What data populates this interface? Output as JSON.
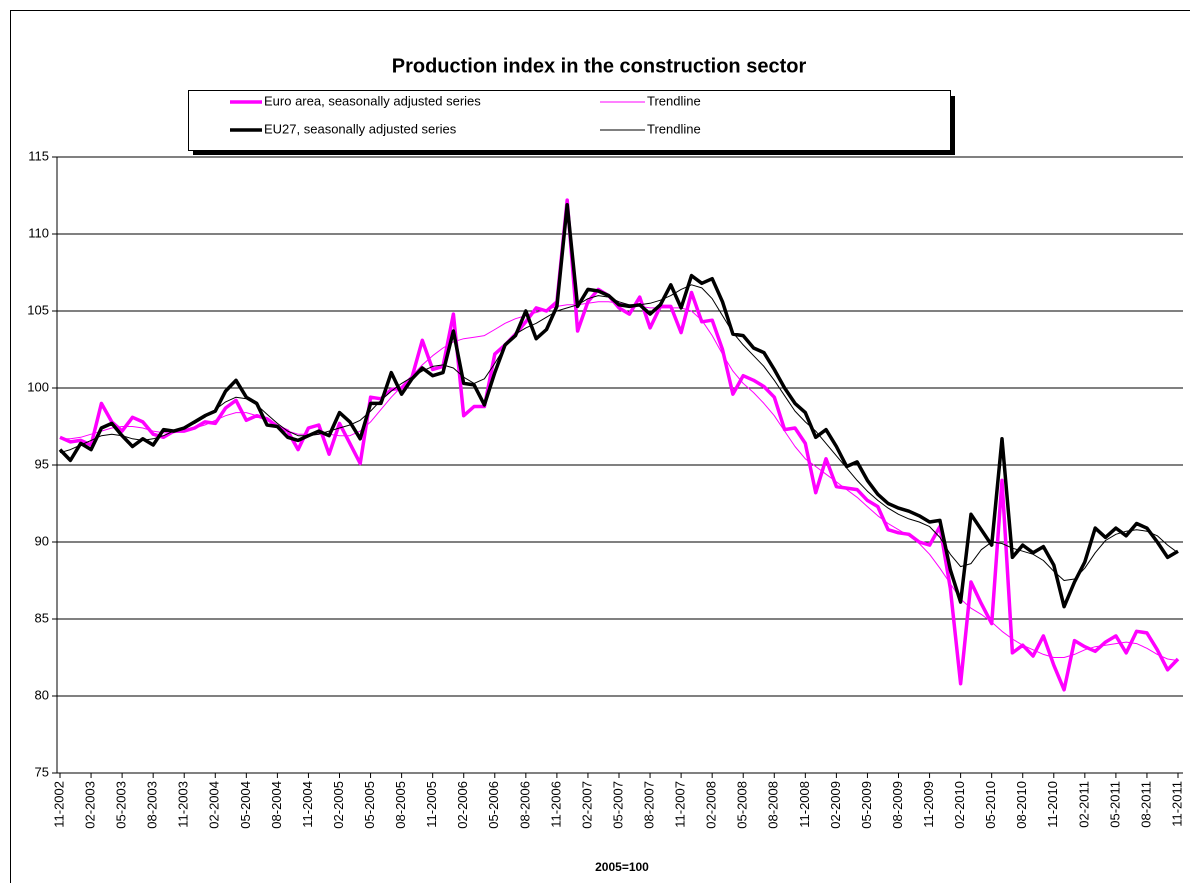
{
  "chart_data": {
    "type": "line",
    "title": "Production index in the construction sector",
    "x_label": "2005=100",
    "categories": [
      "11-2002",
      null,
      null,
      "02-2003",
      null,
      null,
      "05-2003",
      null,
      null,
      "08-2003",
      null,
      null,
      "11-2003",
      null,
      null,
      "02-2004",
      null,
      null,
      "05-2004",
      null,
      null,
      "08-2004",
      null,
      null,
      "11-2004",
      null,
      null,
      "02-2005",
      null,
      null,
      "05-2005",
      null,
      null,
      "08-2005",
      null,
      null,
      "11-2005",
      null,
      null,
      "02-2006",
      null,
      null,
      "05-2006",
      null,
      null,
      "08-2006",
      null,
      null,
      "11-2006",
      null,
      null,
      "02-2007",
      null,
      null,
      "05-2007",
      null,
      null,
      "08-2007",
      null,
      null,
      "11-2007",
      null,
      null,
      "02-2008",
      null,
      null,
      "05-2008",
      null,
      null,
      "08-2008",
      null,
      null,
      "11-2008",
      null,
      null,
      "02-2009",
      null,
      null,
      "05-2009",
      null,
      null,
      "08-2009",
      null,
      null,
      "11-2009",
      null,
      null,
      "02-2010",
      null,
      null,
      "05-2010",
      null,
      null,
      "08-2010",
      null,
      null,
      "11-2010",
      null,
      null,
      "02-2011",
      null,
      null,
      "05-2011",
      null,
      null,
      "08-2011",
      null,
      null,
      "11-2011"
    ],
    "series": [
      {
        "name": "Euro area, seasonally adjusted series",
        "color": "#ff00ff",
        "line_width": 3.5,
        "values": [
          96.8,
          96.5,
          96.6,
          96.3,
          99.0,
          97.8,
          97.2,
          98.1,
          97.8,
          97.0,
          96.8,
          97.2,
          97.2,
          97.4,
          97.8,
          97.7,
          98.7,
          99.2,
          97.9,
          98.2,
          98.0,
          97.5,
          97.2,
          96.0,
          97.4,
          97.6,
          95.7,
          97.7,
          96.4,
          95.1,
          99.4,
          99.3,
          99.9,
          100.0,
          100.7,
          103.1,
          101.2,
          101.4,
          104.8,
          98.2,
          98.8,
          98.8,
          102.2,
          102.8,
          103.5,
          104.3,
          105.2,
          105.0,
          105.6,
          112.2,
          103.7,
          105.6,
          106.4,
          106.0,
          105.2,
          104.8,
          105.9,
          103.9,
          105.3,
          105.3,
          103.6,
          106.2,
          104.3,
          104.4,
          102.5,
          99.6,
          100.8,
          100.5,
          100.1,
          99.4,
          97.3,
          97.4,
          96.4,
          93.2,
          95.4,
          93.6,
          93.5,
          93.4,
          92.7,
          92.3,
          90.8,
          90.6,
          90.5,
          90.0,
          89.8,
          91.0,
          87.0,
          80.8,
          87.4,
          86.0,
          84.7,
          94.0,
          82.8,
          83.3,
          82.6,
          83.9,
          82.0,
          80.4,
          83.6,
          83.2,
          82.9,
          83.5,
          83.9,
          82.8,
          84.2,
          84.1,
          83.0,
          81.7,
          82.4
        ]
      },
      {
        "name": "Trendline",
        "color": "#ff00ff",
        "line_width": 1,
        "values": [
          96.7,
          96.7,
          96.8,
          97.0,
          97.2,
          97.4,
          97.5,
          97.5,
          97.4,
          97.2,
          97.1,
          97.1,
          97.2,
          97.4,
          97.6,
          97.9,
          98.2,
          98.4,
          98.4,
          98.2,
          97.9,
          97.5,
          97.2,
          97.0,
          97.0,
          97.0,
          97.0,
          96.9,
          96.9,
          97.2,
          97.8,
          98.6,
          99.4,
          100.1,
          100.8,
          101.5,
          102.1,
          102.6,
          103.0,
          103.2,
          103.3,
          103.4,
          103.8,
          104.2,
          104.5,
          104.7,
          104.9,
          105.1,
          105.3,
          105.4,
          105.4,
          105.5,
          105.6,
          105.6,
          105.5,
          105.4,
          105.3,
          105.2,
          105.2,
          105.2,
          105.2,
          105.0,
          104.4,
          103.4,
          102.2,
          101.1,
          100.3,
          99.7,
          99.0,
          98.2,
          97.2,
          96.2,
          95.4,
          94.9,
          94.4,
          93.9,
          93.4,
          92.9,
          92.3,
          91.7,
          91.2,
          90.8,
          90.4,
          89.9,
          89.2,
          88.3,
          87.3,
          86.3,
          85.7,
          85.3,
          84.8,
          84.2,
          83.7,
          83.3,
          83.0,
          82.7,
          82.5,
          82.5,
          82.7,
          83.0,
          83.2,
          83.3,
          83.4,
          83.5,
          83.4,
          83.1,
          82.7,
          82.4,
          82.3
        ]
      },
      {
        "name": "EU27, seasonally adjusted series",
        "color": "#000000",
        "line_width": 3.5,
        "values": [
          96.0,
          95.3,
          96.4,
          96.0,
          97.4,
          97.7,
          96.9,
          96.2,
          96.7,
          96.3,
          97.3,
          97.2,
          97.4,
          97.8,
          98.2,
          98.5,
          99.8,
          100.5,
          99.4,
          99.0,
          97.6,
          97.5,
          96.8,
          96.6,
          96.9,
          97.2,
          96.9,
          98.4,
          97.8,
          96.7,
          99.0,
          99.0,
          101.0,
          99.6,
          100.6,
          101.3,
          100.8,
          101.0,
          103.7,
          100.3,
          100.2,
          98.9,
          101.0,
          102.8,
          103.4,
          105.0,
          103.2,
          103.8,
          105.3,
          111.9,
          105.3,
          106.4,
          106.3,
          106.0,
          105.4,
          105.3,
          105.4,
          104.8,
          105.4,
          106.7,
          105.2,
          107.3,
          106.8,
          107.1,
          105.6,
          103.5,
          103.4,
          102.6,
          102.3,
          101.2,
          100.0,
          99.0,
          98.4,
          96.8,
          97.3,
          96.2,
          94.9,
          95.2,
          94.0,
          93.1,
          92.5,
          92.2,
          92.0,
          91.7,
          91.3,
          91.4,
          88.2,
          86.1,
          91.8,
          90.8,
          89.8,
          96.7,
          89.0,
          89.8,
          89.3,
          89.7,
          88.5,
          85.8,
          87.4,
          88.7,
          90.9,
          90.3,
          90.9,
          90.4,
          91.2,
          90.9,
          90.0,
          89.0,
          89.4
        ]
      },
      {
        "name": "Trendline",
        "color": "#000000",
        "line_width": 1,
        "values": [
          95.8,
          96.0,
          96.3,
          96.6,
          96.9,
          97.0,
          96.9,
          96.7,
          96.6,
          96.7,
          96.9,
          97.2,
          97.4,
          97.7,
          98.1,
          98.6,
          99.1,
          99.4,
          99.3,
          98.9,
          98.3,
          97.7,
          97.2,
          96.9,
          96.9,
          97.0,
          97.2,
          97.4,
          97.6,
          97.9,
          98.5,
          99.2,
          99.8,
          100.3,
          100.7,
          101.1,
          101.4,
          101.5,
          101.3,
          100.7,
          100.3,
          100.6,
          101.6,
          102.7,
          103.5,
          103.9,
          104.2,
          104.6,
          105.0,
          105.2,
          105.4,
          105.8,
          106.0,
          105.9,
          105.6,
          105.4,
          105.4,
          105.5,
          105.7,
          106.0,
          106.4,
          106.7,
          106.5,
          105.8,
          104.7,
          103.6,
          102.8,
          102.1,
          101.4,
          100.5,
          99.5,
          98.5,
          97.8,
          97.2,
          96.4,
          95.6,
          94.8,
          94.0,
          93.3,
          92.7,
          92.2,
          91.8,
          91.5,
          91.3,
          91.0,
          90.3,
          89.2,
          88.4,
          88.6,
          89.5,
          90.0,
          89.9,
          89.6,
          89.4,
          89.2,
          88.8,
          88.1,
          87.5,
          87.6,
          88.3,
          89.3,
          90.1,
          90.5,
          90.7,
          90.8,
          90.7,
          90.4,
          89.8,
          89.3
        ]
      }
    ],
    "ylim": [
      75,
      115
    ],
    "yticks": [
      75,
      80,
      85,
      90,
      95,
      100,
      105,
      110,
      115
    ],
    "grid": true
  }
}
